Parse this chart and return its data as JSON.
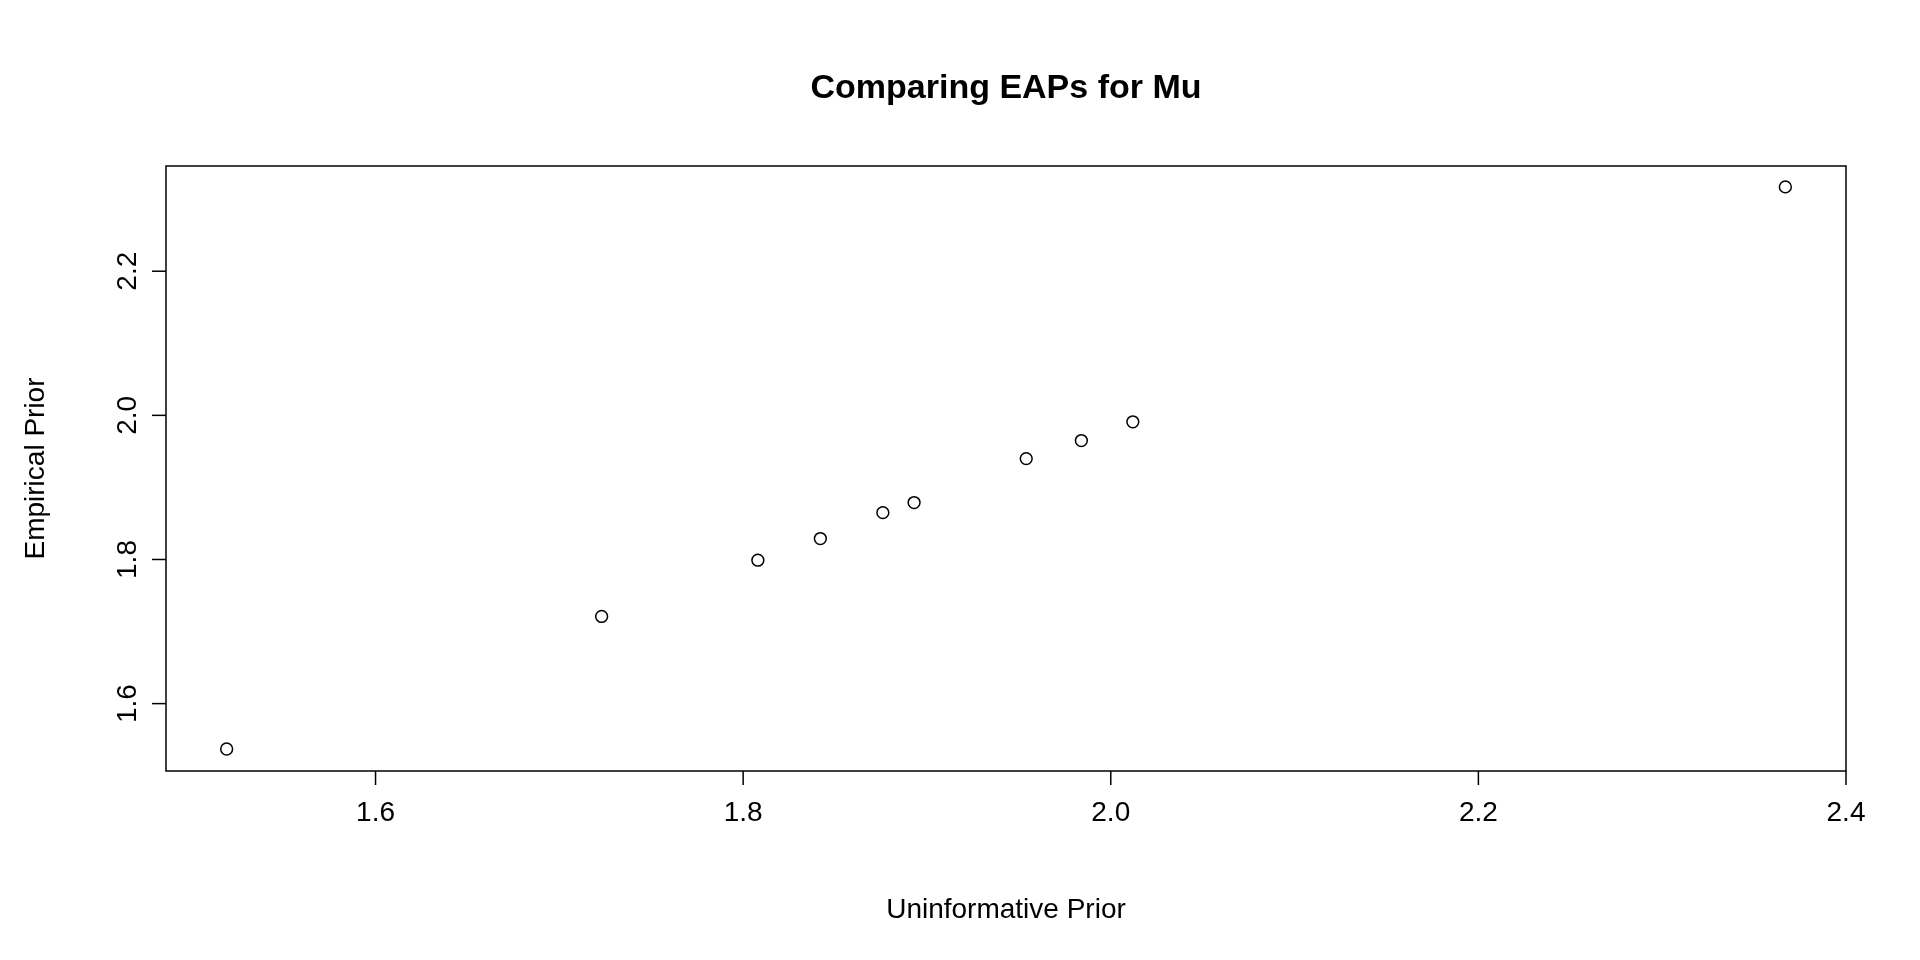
{
  "chart_data": {
    "type": "scatter",
    "title": "Comparing EAPs for Mu",
    "xlabel": "Uninformative Prior",
    "ylabel": "Empirical Prior",
    "x": [
      1.519,
      1.723,
      1.808,
      1.842,
      1.876,
      1.893,
      1.954,
      1.984,
      2.012,
      2.367
    ],
    "values": [
      1.537,
      1.721,
      1.799,
      1.829,
      1.865,
      1.879,
      1.94,
      1.965,
      1.991,
      2.317
    ],
    "color": "#000000",
    "marker": "circle",
    "xlim": [
      1.486,
      2.4
    ],
    "ylim": [
      1.5065,
      2.346
    ],
    "xticks": [
      1.6,
      1.8,
      {
        "value": 2,
        "label": "2.0"
      },
      2.2,
      2.4
    ],
    "yticks": [
      1.6,
      1.8,
      {
        "value": 2,
        "label": "2.0"
      },
      2.2
    ]
  }
}
